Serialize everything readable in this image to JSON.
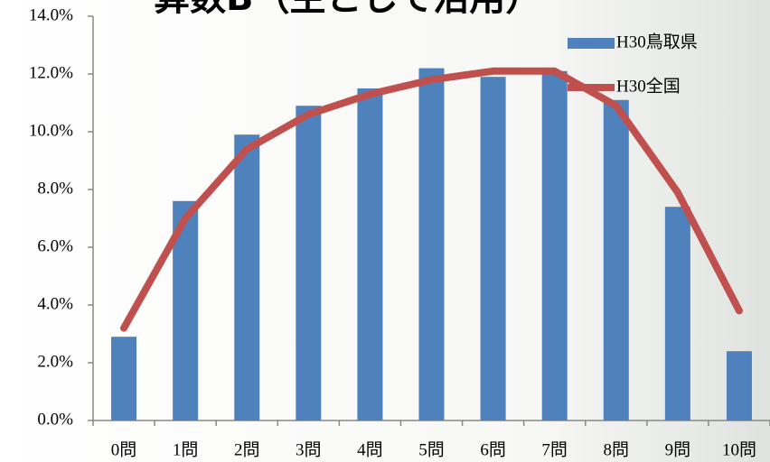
{
  "chart_data": {
    "type": "bar",
    "title": "算数B（主として活用）",
    "categories": [
      "0問",
      "1問",
      "2問",
      "3問",
      "4問",
      "5問",
      "6問",
      "7問",
      "8問",
      "9問",
      "10問"
    ],
    "series": [
      {
        "name": "H30鳥取県",
        "type": "bar",
        "color": "#4f81bd",
        "values": [
          2.9,
          7.6,
          9.9,
          10.9,
          11.5,
          12.2,
          11.9,
          12.1,
          11.1,
          7.4,
          2.4
        ]
      },
      {
        "name": "H30全国",
        "type": "line",
        "color": "#c0504d",
        "values": [
          3.2,
          7.0,
          9.4,
          10.6,
          11.3,
          11.8,
          12.1,
          12.1,
          10.9,
          7.9,
          3.8
        ]
      }
    ],
    "ylim": [
      0,
      14
    ],
    "yticks": [
      {
        "value": 0,
        "label": "0.0%"
      },
      {
        "value": 2,
        "label": "2.0%"
      },
      {
        "value": 4,
        "label": "4.0%"
      },
      {
        "value": 6,
        "label": "6.0%"
      },
      {
        "value": 8,
        "label": "8.0%"
      },
      {
        "value": 10,
        "label": "10.0%"
      },
      {
        "value": 12,
        "label": "12.0%"
      },
      {
        "value": 14,
        "label": "14.0%"
      }
    ],
    "grid": false,
    "legend": "top-right"
  }
}
